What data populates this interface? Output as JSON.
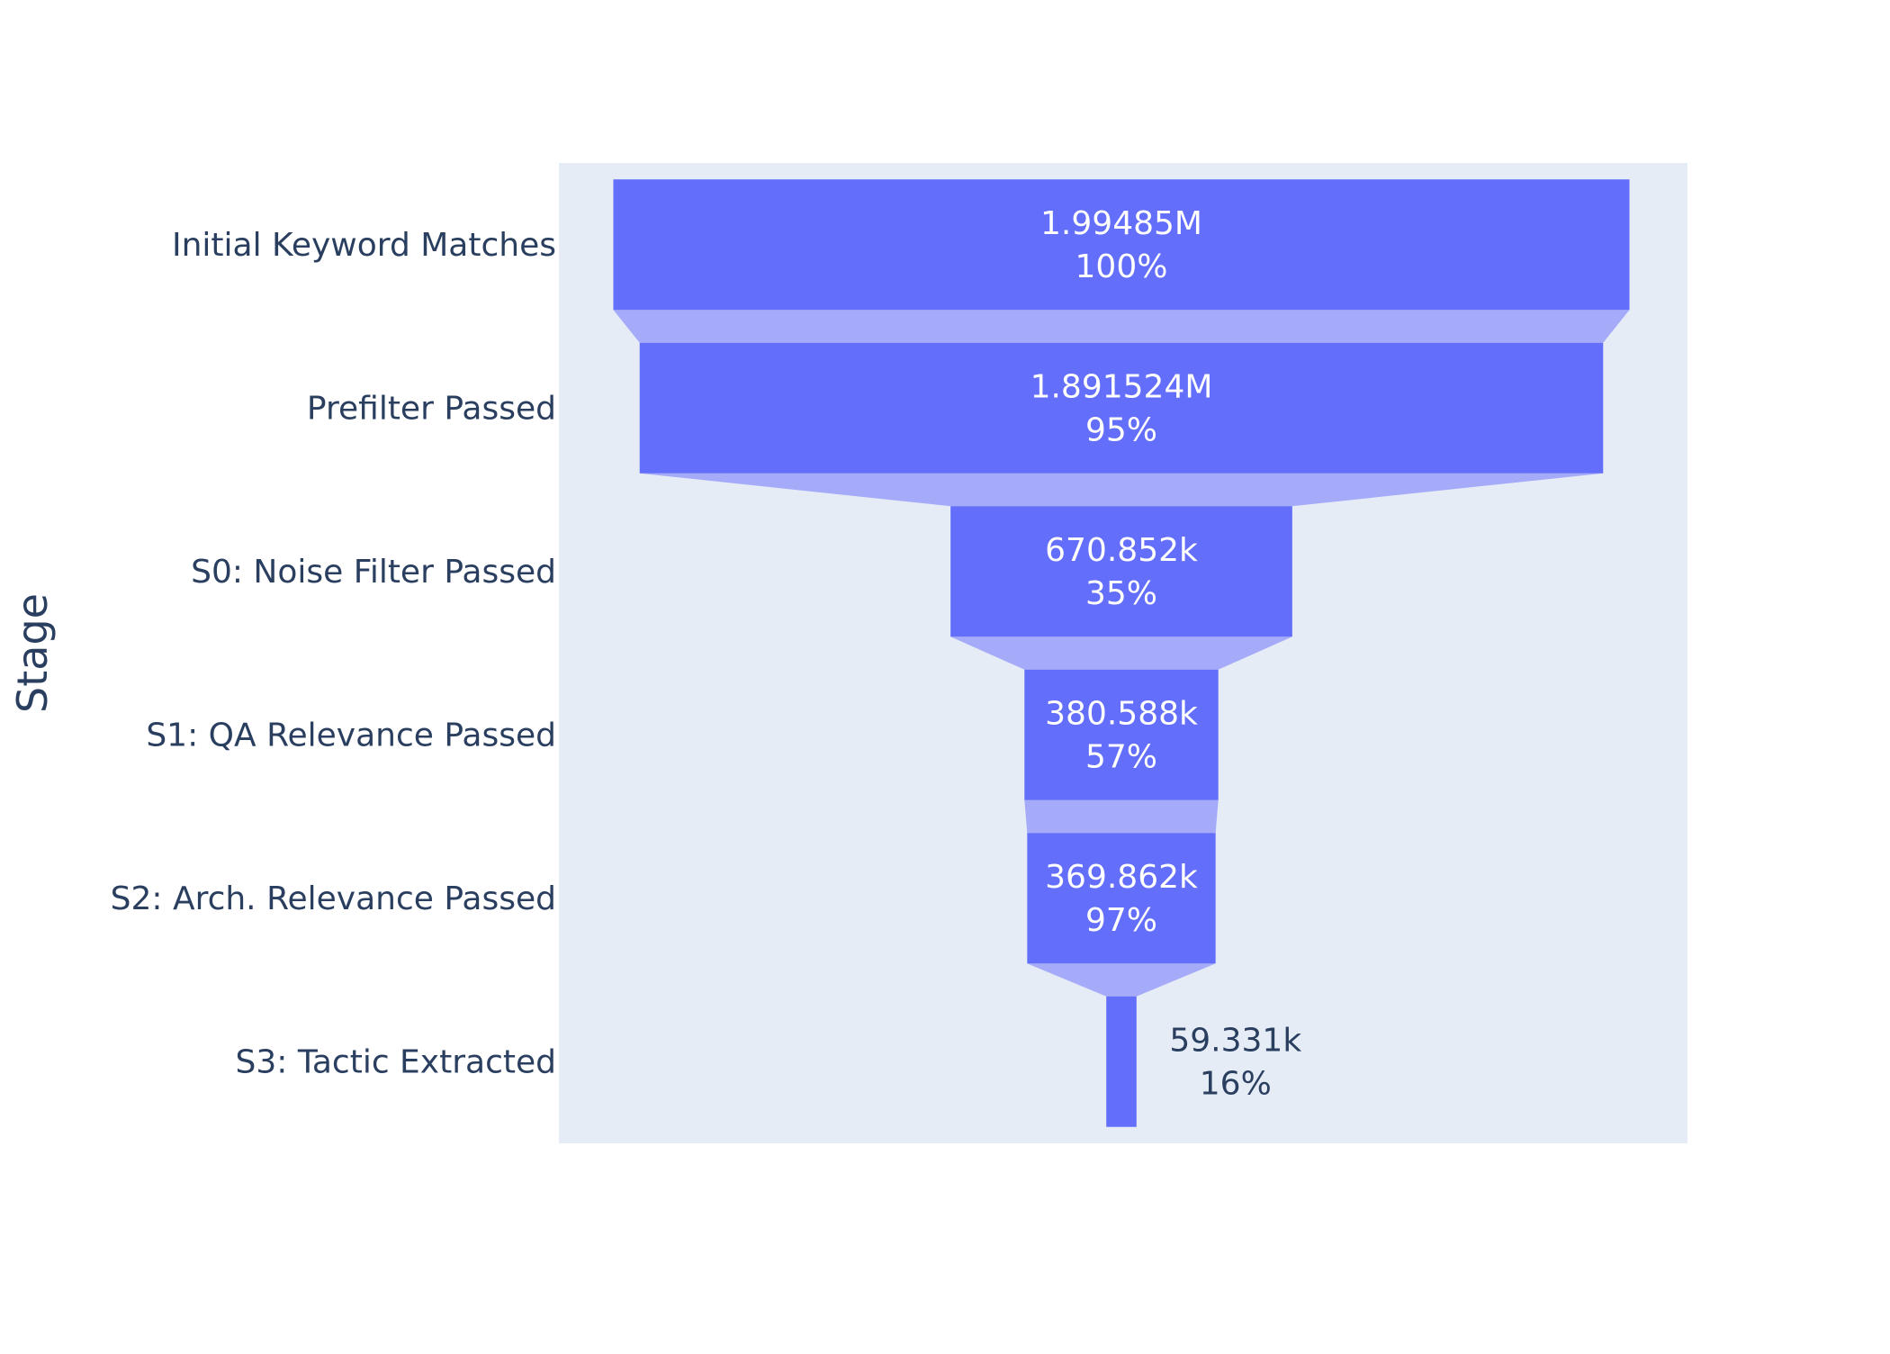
{
  "chart_data": {
    "type": "funnel",
    "ylabel": "Stage",
    "colors": {
      "bar": "#636efa",
      "connector": "#a5abf8",
      "plot_bg": "#e5ecf6",
      "axis_text": "#2a3f5f",
      "inside_text": "#ffffff"
    },
    "categories": [
      "Initial Keyword Matches",
      "Prefilter Passed",
      "S0: Noise Filter Passed",
      "S1: QA Relevance Passed",
      "S2: Arch. Relevance Passed",
      "S3: Tactic Extracted"
    ],
    "values": [
      1994850,
      1891524,
      670852,
      380588,
      369862,
      59331
    ],
    "value_labels": [
      "1.99485M",
      "1.891524M",
      "670.852k",
      "380.588k",
      "369.862k",
      "59.331k"
    ],
    "percent_labels": [
      "100%",
      "95%",
      "35%",
      "57%",
      "97%",
      "16%"
    ]
  }
}
